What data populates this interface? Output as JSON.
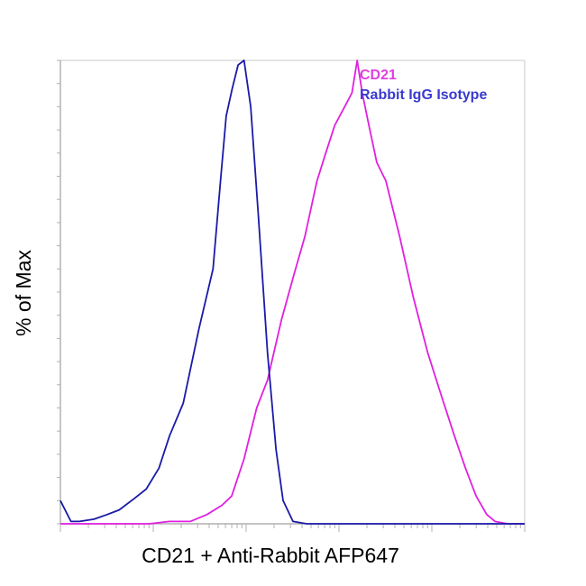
{
  "chart_data": {
    "type": "line",
    "title": "",
    "xlabel": "CD21 + Anti-Rabbit AFP647",
    "ylabel": "% of Max",
    "x_scale": "log",
    "xlim": [
      1,
      100000
    ],
    "ylim": [
      0,
      100
    ],
    "x_tick_labels": [],
    "y_tick_labels": [],
    "grid": false,
    "legend_position": "top-right",
    "series": [
      {
        "name": "CD21",
        "color": "#e020e0",
        "points": [
          [
            1.0,
            0
          ],
          [
            3.0,
            0
          ],
          [
            9.0,
            0
          ],
          [
            15.0,
            0.5
          ],
          [
            25.0,
            0.5
          ],
          [
            38.0,
            2
          ],
          [
            55.0,
            4
          ],
          [
            70.0,
            6
          ],
          [
            95.0,
            14
          ],
          [
            130.0,
            25
          ],
          [
            170.0,
            31
          ],
          [
            240.0,
            44
          ],
          [
            330.0,
            54
          ],
          [
            430.0,
            62
          ],
          [
            580.0,
            74
          ],
          [
            720.0,
            80
          ],
          [
            900.0,
            86
          ],
          [
            1150.0,
            90
          ],
          [
            1380.0,
            93
          ],
          [
            1570.0,
            100
          ],
          [
            1780.0,
            93
          ],
          [
            2050.0,
            87
          ],
          [
            2550.0,
            78
          ],
          [
            3200.0,
            74
          ],
          [
            4500.0,
            62
          ],
          [
            6300.0,
            49
          ],
          [
            9000.0,
            37
          ],
          [
            12500.0,
            28
          ],
          [
            17500.0,
            19
          ],
          [
            23000.0,
            12
          ],
          [
            30000.0,
            6
          ],
          [
            39000.0,
            2
          ],
          [
            48000.0,
            0.5
          ],
          [
            65000.0,
            0
          ],
          [
            100000.0,
            0
          ]
        ]
      },
      {
        "name": "Rabbit IgG Isotype",
        "color": "#1a1aa8",
        "points": [
          [
            1.0,
            5
          ],
          [
            1.3,
            0.5
          ],
          [
            1.6,
            0.5
          ],
          [
            2.3,
            1
          ],
          [
            3.2,
            2
          ],
          [
            4.3,
            3
          ],
          [
            6.3,
            5.5
          ],
          [
            8.4,
            7.5
          ],
          [
            11.5,
            12
          ],
          [
            15.0,
            19
          ],
          [
            21.0,
            26
          ],
          [
            31.0,
            42
          ],
          [
            44.0,
            55
          ],
          [
            53.0,
            74
          ],
          [
            61.0,
            88
          ],
          [
            71.0,
            94
          ],
          [
            82.0,
            99
          ],
          [
            95.0,
            100
          ],
          [
            112.0,
            90
          ],
          [
            135.0,
            67
          ],
          [
            170.0,
            37
          ],
          [
            210.0,
            16
          ],
          [
            250.0,
            5
          ],
          [
            320.0,
            0.5
          ],
          [
            450.0,
            0
          ],
          [
            1000.0,
            0
          ],
          [
            100000.0,
            0
          ]
        ]
      }
    ]
  }
}
